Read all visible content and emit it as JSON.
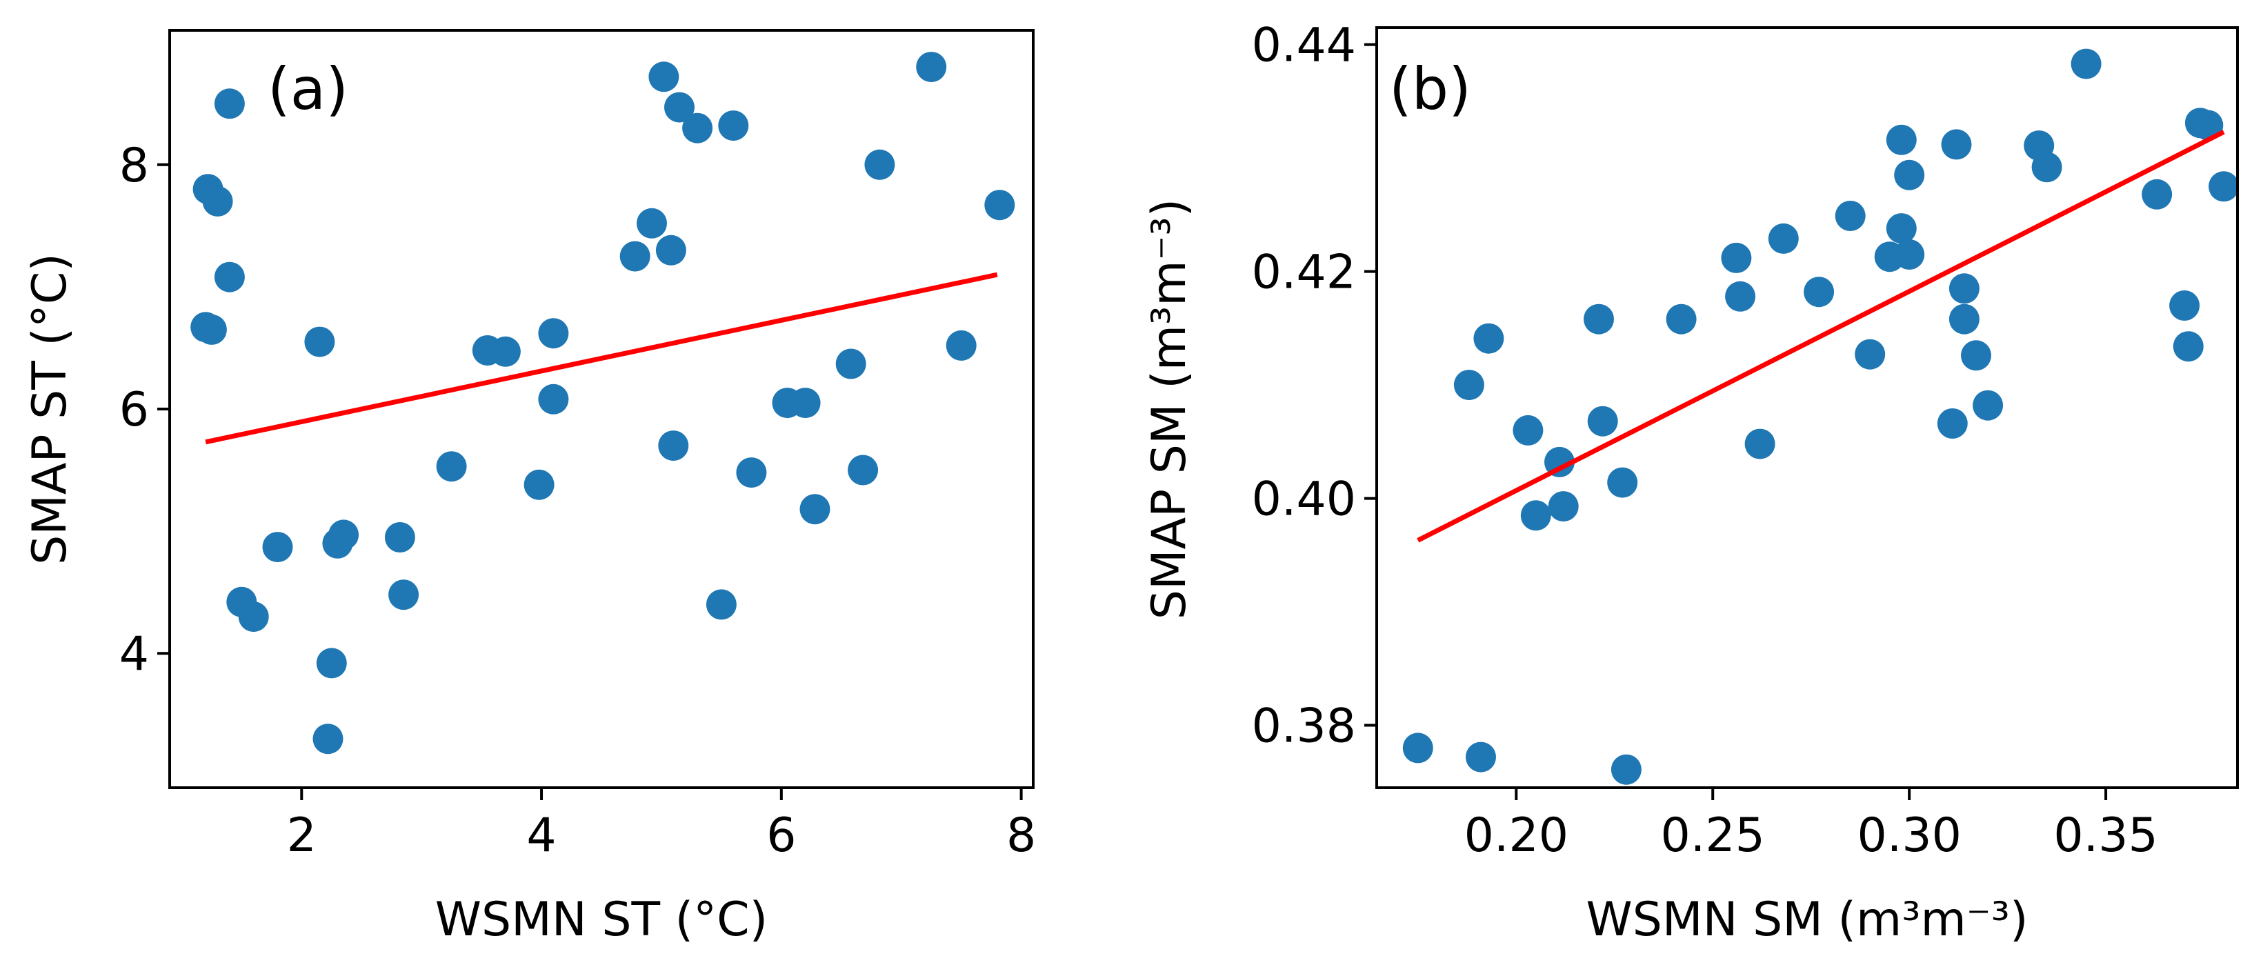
{
  "chart_data": [
    {
      "type": "scatter",
      "panel_label": "(a)",
      "xlabel": "WSMN ST (°C)",
      "ylabel": "SMAP ST (°C)",
      "xlim": [
        0.9,
        8.1
      ],
      "ylim": [
        2.9,
        9.1
      ],
      "xticks": [
        2,
        4,
        6,
        8
      ],
      "xtick_labels": [
        "2",
        "4",
        "6",
        "8"
      ],
      "yticks": [
        4,
        6,
        8
      ],
      "ytick_labels": [
        "4",
        "6",
        "8"
      ],
      "point_color": "#1f77b4",
      "line_color": "#ff0000",
      "fit_line": {
        "x": [
          1.2,
          7.8
        ],
        "y": [
          5.73,
          7.1
        ]
      },
      "points": [
        [
          1.2,
          6.67
        ],
        [
          1.25,
          6.65
        ],
        [
          1.22,
          7.8
        ],
        [
          1.3,
          7.7
        ],
        [
          1.4,
          7.08
        ],
        [
          1.4,
          8.5
        ],
        [
          1.5,
          4.42
        ],
        [
          1.6,
          4.3
        ],
        [
          1.8,
          4.87
        ],
        [
          2.15,
          6.55
        ],
        [
          2.22,
          3.3
        ],
        [
          2.25,
          3.92
        ],
        [
          2.3,
          4.9
        ],
        [
          2.35,
          4.97
        ],
        [
          2.82,
          4.95
        ],
        [
          2.85,
          4.48
        ],
        [
          3.25,
          5.53
        ],
        [
          3.55,
          6.48
        ],
        [
          3.7,
          6.47
        ],
        [
          3.98,
          5.38
        ],
        [
          4.1,
          6.62
        ],
        [
          4.1,
          6.08
        ],
        [
          4.78,
          7.25
        ],
        [
          4.92,
          7.52
        ],
        [
          5.02,
          8.72
        ],
        [
          5.08,
          7.3
        ],
        [
          5.1,
          5.7
        ],
        [
          5.15,
          8.47
        ],
        [
          5.3,
          8.3
        ],
        [
          5.5,
          4.4
        ],
        [
          5.6,
          8.32
        ],
        [
          5.75,
          5.48
        ],
        [
          6.05,
          6.05
        ],
        [
          6.2,
          6.05
        ],
        [
          6.28,
          5.18
        ],
        [
          6.58,
          6.37
        ],
        [
          6.68,
          5.5
        ],
        [
          6.82,
          8.0
        ],
        [
          7.25,
          8.8
        ],
        [
          7.5,
          6.52
        ],
        [
          7.82,
          7.67
        ]
      ]
    },
    {
      "type": "scatter",
      "panel_label": "(b)",
      "xlabel": "WSMN SM (m³m⁻³)",
      "ylabel": "SMAP SM (m³m⁻³)",
      "xlim": [
        0.1645,
        0.3835
      ],
      "ylim": [
        0.3745,
        0.4415
      ],
      "xticks": [
        0.2,
        0.25,
        0.3,
        0.35
      ],
      "xtick_labels": [
        "0.20",
        "0.25",
        "0.30",
        "0.35"
      ],
      "yticks": [
        0.38,
        0.4,
        0.42,
        0.44
      ],
      "ytick_labels": [
        "0.38",
        "0.40",
        "0.42",
        "0.44"
      ],
      "point_color": "#1f77b4",
      "line_color": "#ff0000",
      "fit_line": {
        "x": [
          0.175,
          0.38
        ],
        "y": [
          0.3963,
          0.4323
        ]
      },
      "points": [
        [
          0.175,
          0.378
        ],
        [
          0.188,
          0.41
        ],
        [
          0.191,
          0.3772
        ],
        [
          0.193,
          0.4141
        ],
        [
          0.203,
          0.406
        ],
        [
          0.205,
          0.3985
        ],
        [
          0.211,
          0.4032
        ],
        [
          0.212,
          0.3993
        ],
        [
          0.221,
          0.4158
        ],
        [
          0.222,
          0.4068
        ],
        [
          0.227,
          0.4014
        ],
        [
          0.228,
          0.3761
        ],
        [
          0.242,
          0.4158
        ],
        [
          0.256,
          0.4212
        ],
        [
          0.257,
          0.4178
        ],
        [
          0.262,
          0.4048
        ],
        [
          0.268,
          0.4229
        ],
        [
          0.277,
          0.4182
        ],
        [
          0.285,
          0.4249
        ],
        [
          0.29,
          0.4127
        ],
        [
          0.295,
          0.4213
        ],
        [
          0.298,
          0.4316
        ],
        [
          0.298,
          0.4238
        ],
        [
          0.3,
          0.4285
        ],
        [
          0.3,
          0.4215
        ],
        [
          0.311,
          0.4066
        ],
        [
          0.312,
          0.4312
        ],
        [
          0.314,
          0.4185
        ],
        [
          0.314,
          0.4158
        ],
        [
          0.317,
          0.4126
        ],
        [
          0.32,
          0.4082
        ],
        [
          0.333,
          0.4311
        ],
        [
          0.335,
          0.4292
        ],
        [
          0.345,
          0.4383
        ],
        [
          0.363,
          0.4268
        ],
        [
          0.37,
          0.417
        ],
        [
          0.371,
          0.4134
        ],
        [
          0.374,
          0.4331
        ],
        [
          0.376,
          0.4329
        ],
        [
          0.38,
          0.4275
        ]
      ]
    }
  ]
}
